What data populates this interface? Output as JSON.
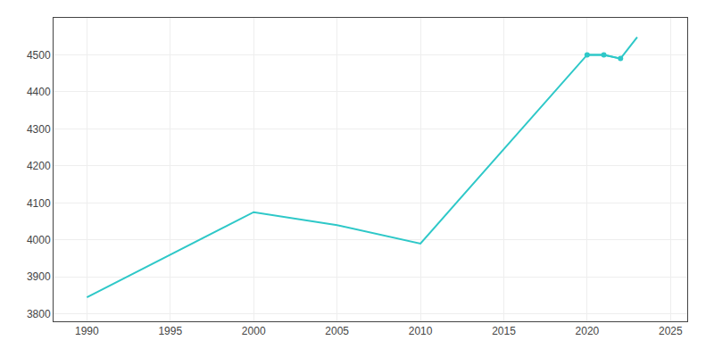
{
  "chart_data": {
    "type": "line",
    "x": [
      1990,
      2000,
      2005,
      2010,
      2020,
      2021,
      2022,
      2023
    ],
    "series": [
      {
        "color": "#2ec8c8",
        "values": [
          3845,
          4075,
          4040,
          3990,
          4500,
          4500,
          4490,
          4548
        ]
      },
      {
        "color": "#2ec8c8",
        "marker": "circle",
        "values": [
          null,
          null,
          null,
          null,
          4500,
          4500,
          4490,
          null
        ]
      }
    ],
    "xlim": [
      1988,
      2026
    ],
    "ylim": [
      3780,
      4600
    ],
    "xticks": [
      1990,
      1995,
      2000,
      2005,
      2010,
      2015,
      2020,
      2025
    ],
    "yticks": [
      3800,
      3900,
      4000,
      4100,
      4200,
      4300,
      4400,
      4500
    ],
    "grid": true
  }
}
